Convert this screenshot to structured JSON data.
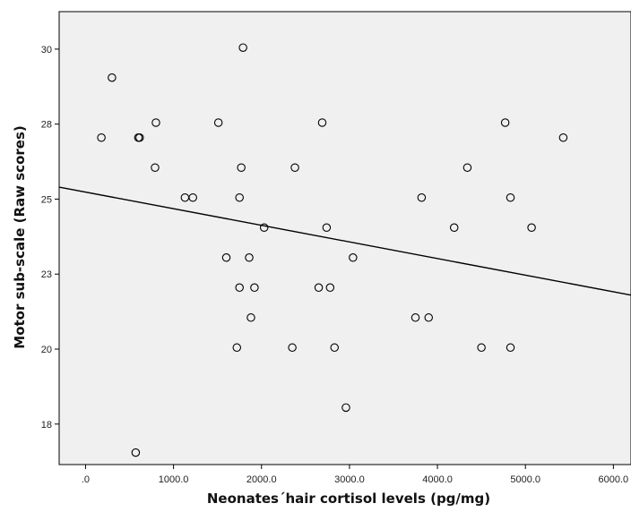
{
  "chart_data": {
    "type": "scatter",
    "title": "",
    "xlabel": "Neonates´hair cortisol levels (pg/mg)",
    "ylabel": "Motor sub-scale (Raw scores)",
    "xlim": [
      -300,
      6200
    ],
    "ylim": [
      16.4,
      31.5
    ],
    "x_ticks": [
      0,
      1000,
      2000,
      3000,
      4000,
      5000,
      6000
    ],
    "x_tick_labels": [
      ".0",
      "1000.0",
      "2000.0",
      "3000.0",
      "4000.0",
      "5000.0",
      "6000.0"
    ],
    "y_ticks": [
      17.75,
      20.25,
      22.75,
      25.25,
      27.75,
      30.25
    ],
    "y_tick_labels": [
      "18",
      "20",
      "23",
      "25",
      "28",
      "30"
    ],
    "grid": false,
    "background": "#f0f0f0",
    "points": [
      {
        "x": 300,
        "y": 29.3
      },
      {
        "x": 180,
        "y": 27.3
      },
      {
        "x": 600,
        "y": 27.3
      },
      {
        "x": 615,
        "y": 27.3
      },
      {
        "x": 800,
        "y": 27.8
      },
      {
        "x": 790,
        "y": 26.3
      },
      {
        "x": 1790,
        "y": 30.3
      },
      {
        "x": 1510,
        "y": 27.8
      },
      {
        "x": 1770,
        "y": 26.3
      },
      {
        "x": 1130,
        "y": 25.3
      },
      {
        "x": 1220,
        "y": 25.3
      },
      {
        "x": 1750,
        "y": 25.3
      },
      {
        "x": 2030,
        "y": 24.3
      },
      {
        "x": 1600,
        "y": 23.3
      },
      {
        "x": 1860,
        "y": 23.3
      },
      {
        "x": 1750,
        "y": 22.3
      },
      {
        "x": 1920,
        "y": 22.3
      },
      {
        "x": 1880,
        "y": 21.3
      },
      {
        "x": 1720,
        "y": 20.3
      },
      {
        "x": 570,
        "y": 16.8
      },
      {
        "x": 2690,
        "y": 27.8
      },
      {
        "x": 2380,
        "y": 26.3
      },
      {
        "x": 2740,
        "y": 24.3
      },
      {
        "x": 3040,
        "y": 23.3
      },
      {
        "x": 2650,
        "y": 22.3
      },
      {
        "x": 2780,
        "y": 22.3
      },
      {
        "x": 2350,
        "y": 20.3
      },
      {
        "x": 2830,
        "y": 20.3
      },
      {
        "x": 2960,
        "y": 18.3
      },
      {
        "x": 3820,
        "y": 25.3
      },
      {
        "x": 4340,
        "y": 26.3
      },
      {
        "x": 4190,
        "y": 24.3
      },
      {
        "x": 3750,
        "y": 21.3
      },
      {
        "x": 3900,
        "y": 21.3
      },
      {
        "x": 4770,
        "y": 27.8
      },
      {
        "x": 5430,
        "y": 27.3
      },
      {
        "x": 4830,
        "y": 25.3
      },
      {
        "x": 5070,
        "y": 24.3
      },
      {
        "x": 4500,
        "y": 20.3
      },
      {
        "x": 4830,
        "y": 20.3
      }
    ],
    "fit_line": [
      {
        "x": -300,
        "y": 25.65
      },
      {
        "x": 6200,
        "y": 22.05
      }
    ],
    "colors": {
      "marker_stroke": "#000000",
      "line": "#000000",
      "plot_background": "#f0f0f0"
    }
  }
}
